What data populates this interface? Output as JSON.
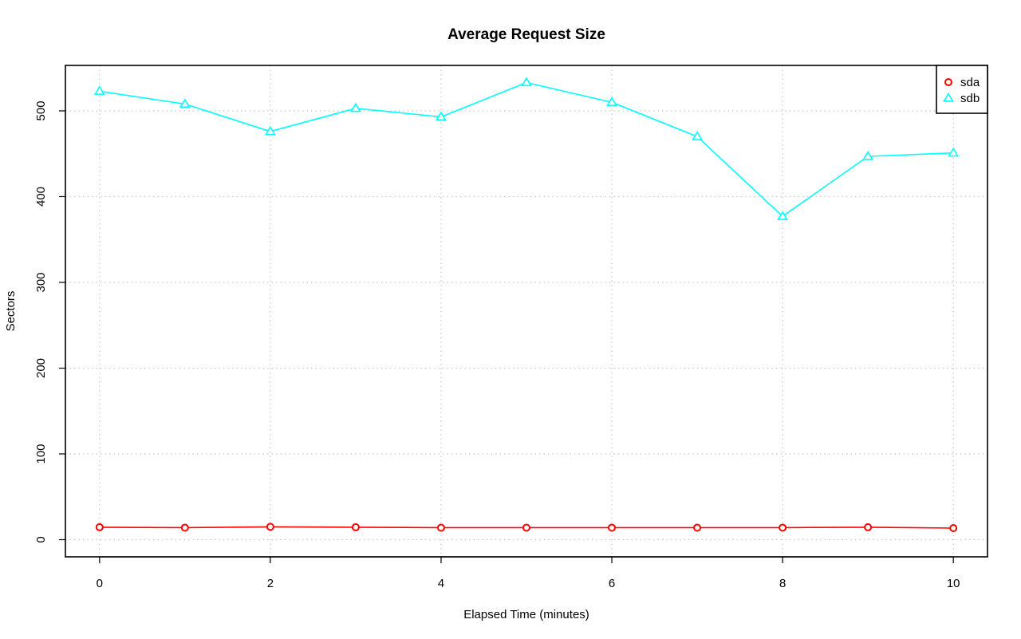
{
  "chart_data": {
    "type": "line",
    "title": "Average Request Size",
    "xlabel": "Elapsed Time (minutes)",
    "ylabel": "Sectors",
    "x": [
      0,
      1,
      2,
      3,
      4,
      5,
      6,
      7,
      8,
      9,
      10
    ],
    "xlim": [
      -0.4,
      10.4
    ],
    "ylim": [
      -20,
      553
    ],
    "x_ticks": [
      0,
      2,
      4,
      6,
      8,
      10
    ],
    "y_ticks": [
      0,
      100,
      200,
      300,
      400,
      500
    ],
    "x_tick_labels": [
      "0",
      "2",
      "4",
      "6",
      "8",
      "10"
    ],
    "y_tick_labels": [
      "0",
      "100",
      "200",
      "300",
      "400",
      "500"
    ],
    "grid": true,
    "legend_position": "top-right",
    "series": [
      {
        "name": "sda",
        "color": "#ff0000",
        "marker": "circle",
        "values": [
          14.5,
          14,
          15,
          14.5,
          14,
          14,
          14,
          14,
          14,
          14.5,
          13.5
        ]
      },
      {
        "name": "sdb",
        "color": "#00ffff",
        "marker": "triangle",
        "values": [
          523,
          508,
          476,
          503,
          493,
          533,
          510,
          470,
          377,
          447,
          451
        ]
      }
    ]
  }
}
